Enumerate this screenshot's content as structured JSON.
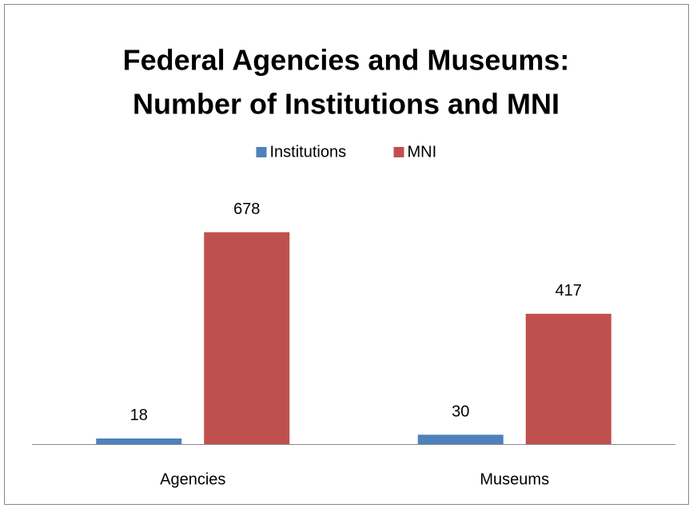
{
  "chart_data": {
    "type": "bar",
    "title": [
      "Federal Agencies and Museums:",
      "Number of Institutions and MNI"
    ],
    "categories": [
      "Agencies",
      "Museums"
    ],
    "series": [
      {
        "name": "Institutions",
        "color": "#4f81bd",
        "values": [
          18,
          30
        ]
      },
      {
        "name": "MNI",
        "color": "#c0504d",
        "values": [
          678,
          417
        ]
      }
    ],
    "ylim": [
      0,
      800
    ],
    "legend": "top"
  }
}
